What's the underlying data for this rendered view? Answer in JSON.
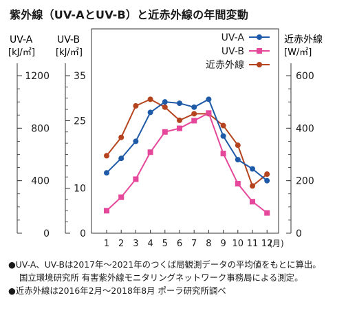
{
  "title": "紫外線（UV-AとUV-B）と近赤外線の年間変動",
  "notes": [
    "●UV-A、UV-Bは2017年～2021年のつくば局観測データの平均値をもとに算出。",
    "国立環境研究所 有害紫外線モニタリングネットワーク事務局による測定。",
    "●近赤外線は2016年2月～2018年8月 ポーラ研究所調べ"
  ],
  "chart_data": {
    "type": "line",
    "categories": [
      "1",
      "2",
      "3",
      "4",
      "5",
      "6",
      "7",
      "8",
      "9",
      "10",
      "11",
      "12"
    ],
    "x_unit": "(月)",
    "axes": {
      "uva": {
        "label": "UV-A",
        "unit": "[kJ/㎡]",
        "ylim": [
          0,
          1500
        ],
        "ticks": [
          0,
          400,
          800,
          1200
        ]
      },
      "uvb": {
        "label": "UV-B",
        "unit": "[kJ/㎡]",
        "ylim": [
          0,
          43.75
        ],
        "ticks": [
          0,
          10,
          25,
          35
        ]
      },
      "nir": {
        "label": "近赤外線",
        "unit": "[W/㎡]",
        "ylim": [
          0,
          700
        ],
        "ticks": [
          0,
          200,
          400,
          600
        ]
      }
    },
    "series": [
      {
        "name": "UV-A",
        "axis": "uva",
        "color": "#1f5aa8",
        "marker": "circle",
        "values": [
          460,
          570,
          700,
          920,
          1000,
          990,
          960,
          1020,
          740,
          560,
          490,
          400
        ]
      },
      {
        "name": "UV-B",
        "axis": "uvb",
        "color": "#e5489a",
        "marker": "square",
        "values": [
          5,
          8,
          12,
          18,
          22.5,
          23.3,
          25,
          26.7,
          17.7,
          11,
          7,
          4.5
        ]
      },
      {
        "name": "近赤外線",
        "axis": "nir",
        "color": "#b5441e",
        "marker": "circle",
        "values": [
          295,
          365,
          485,
          510,
          480,
          430,
          455,
          455,
          410,
          335,
          180,
          225
        ]
      }
    ],
    "legend_position": "top-right",
    "grid": false
  }
}
